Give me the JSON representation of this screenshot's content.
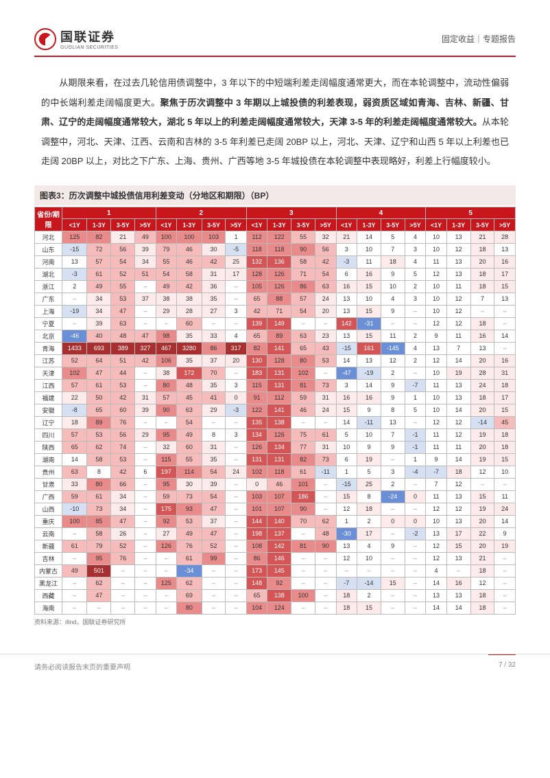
{
  "header": {
    "logo_cn": "国联证券",
    "logo_en": "GUOLIAN SECURITIES",
    "right": "固定收益｜专题报告"
  },
  "body": {
    "p1": "　　从期限来看，在过去几轮信用债调整中，3 年以下的中短端利差走阔幅度通常更大，而在本轮调整中，流动性偏弱的中长端利差走阔幅度更大。",
    "p1b": "聚焦于历次调整中 3 年期以上城投债的利差表现，弱资质区域如青海、吉林、新疆、甘肃、辽宁的走阔幅度通常较大，湖北 5 年以上的利差走阔幅度通常较大，天津 3-5 年的利差走阔幅度通常较大。",
    "p1c": "从本轮调整中，河北、天津、江西、云南和吉林的 3-5 年利差已走阔 20BP 以上，河北、天津、辽宁和山西 5 年以上利差也已走阔 20BP 以上，对比之下广东、上海、贵州、广西等地 3-5 年城投债在本轮调整中表现略好，利差上行幅度较小。"
  },
  "caption": "图表3：历次调整中城投债信用利差变动（分地区和期限）（BP）",
  "source": "资料来源：ifind，国联证券研究所",
  "footer_left": "请务必阅读报告末页的重要声明",
  "footer_right": "7 / 32",
  "table": {
    "corner": "省份/期限",
    "groups": [
      "1",
      "2",
      "3",
      "4",
      "5"
    ],
    "subcols": [
      "<1Y",
      "1-3Y",
      "3-5Y",
      ">5Y"
    ],
    "rows": [
      {
        "n": "河北",
        "v": [
          "125",
          "82",
          "21",
          "49",
          "100",
          "100",
          "103",
          "1",
          "112",
          "122",
          "55",
          "32",
          "21",
          "14",
          "5",
          "4",
          "10",
          "13",
          "21",
          "28"
        ]
      },
      {
        "n": "山东",
        "v": [
          "-15",
          "72",
          "56",
          "39",
          "79",
          "46",
          "30",
          "-5",
          "118",
          "118",
          "90",
          "56",
          "3",
          "10",
          "7",
          "3",
          "10",
          "12",
          "18",
          "13"
        ]
      },
      {
        "n": "河南",
        "v": [
          "13",
          "57",
          "54",
          "34",
          "55",
          "46",
          "42",
          "25",
          "132",
          "136",
          "58",
          "42",
          "-3",
          "11",
          "18",
          "4",
          "11",
          "13",
          "20",
          "16"
        ]
      },
      {
        "n": "湖北",
        "v": [
          "-3",
          "61",
          "52",
          "51",
          "54",
          "58",
          "31",
          "17",
          "128",
          "126",
          "71",
          "54",
          "6",
          "16",
          "9",
          "5",
          "12",
          "13",
          "18",
          "17"
        ]
      },
      {
        "n": "浙江",
        "v": [
          "2",
          "49",
          "55",
          "–",
          "49",
          "42",
          "36",
          "–",
          "105",
          "126",
          "86",
          "63",
          "16",
          "15",
          "10",
          "2",
          "10",
          "11",
          "18",
          "15"
        ]
      },
      {
        "n": "广东",
        "v": [
          "–",
          "34",
          "53",
          "37",
          "38",
          "38",
          "35",
          "–",
          "65",
          "88",
          "57",
          "24",
          "13",
          "10",
          "4",
          "3",
          "10",
          "12",
          "7",
          "13"
        ]
      },
      {
        "n": "上海",
        "v": [
          "-19",
          "34",
          "47",
          "–",
          "29",
          "28",
          "27",
          "3",
          "42",
          "71",
          "54",
          "20",
          "13",
          "15",
          "9",
          "–",
          "10",
          "12",
          "–",
          "–"
        ]
      },
      {
        "n": "宁夏",
        "v": [
          "–",
          "39",
          "63",
          "–",
          "–",
          "60",
          "–",
          "–",
          "139",
          "149",
          "–",
          "–",
          "142",
          "-31",
          "–",
          "–",
          "12",
          "12",
          "18",
          "–"
        ]
      },
      {
        "n": "北京",
        "v": [
          "-46",
          "40",
          "48",
          "47",
          "98",
          "35",
          "33",
          "4",
          "65",
          "89",
          "63",
          "23",
          "13",
          "15",
          "11",
          "2",
          "9",
          "11",
          "16",
          "14"
        ]
      },
      {
        "n": "青海",
        "v": [
          "1433",
          "693",
          "389",
          "327",
          "467",
          "3280",
          "86",
          "317",
          "82",
          "141",
          "65",
          "43",
          "-15",
          "161",
          "-145",
          "4",
          "13",
          "7",
          "13",
          "–"
        ]
      },
      {
        "n": "江苏",
        "v": [
          "52",
          "64",
          "51",
          "42",
          "106",
          "35",
          "37",
          "20",
          "130",
          "128",
          "80",
          "53",
          "14",
          "13",
          "12",
          "2",
          "12",
          "14",
          "20",
          "16"
        ]
      },
      {
        "n": "天津",
        "v": [
          "102",
          "47",
          "44",
          "–",
          "38",
          "172",
          "70",
          "–",
          "183",
          "131",
          "102",
          "–",
          "-47",
          "-19",
          "2",
          "–",
          "10",
          "19",
          "28",
          "31"
        ]
      },
      {
        "n": "江西",
        "v": [
          "57",
          "61",
          "53",
          "–",
          "80",
          "48",
          "35",
          "3",
          "115",
          "131",
          "81",
          "73",
          "3",
          "14",
          "9",
          "-7",
          "11",
          "13",
          "24",
          "18"
        ]
      },
      {
        "n": "福建",
        "v": [
          "22",
          "50",
          "42",
          "31",
          "57",
          "45",
          "41",
          "0",
          "91",
          "112",
          "59",
          "31",
          "16",
          "16",
          "9",
          "1",
          "10",
          "13",
          "18",
          "17"
        ]
      },
      {
        "n": "安徽",
        "v": [
          "-8",
          "65",
          "60",
          "39",
          "90",
          "63",
          "29",
          "-3",
          "122",
          "141",
          "46",
          "24",
          "15",
          "9",
          "8",
          "5",
          "10",
          "14",
          "20",
          "15"
        ]
      },
      {
        "n": "辽宁",
        "v": [
          "18",
          "89",
          "76",
          "–",
          "–",
          "54",
          "–",
          "–",
          "135",
          "138",
          "–",
          "–",
          "14",
          "-11",
          "13",
          "–",
          "12",
          "12",
          "-14",
          "45"
        ]
      },
      {
        "n": "四川",
        "v": [
          "57",
          "53",
          "56",
          "29",
          "95",
          "49",
          "8",
          "3",
          "134",
          "126",
          "75",
          "61",
          "5",
          "10",
          "7",
          "-1",
          "11",
          "12",
          "19",
          "18"
        ]
      },
      {
        "n": "陕西",
        "v": [
          "65",
          "62",
          "74",
          "–",
          "32",
          "60",
          "31",
          "–",
          "126",
          "134",
          "77",
          "31",
          "10",
          "9",
          "9",
          "-1",
          "11",
          "11",
          "20",
          "18"
        ]
      },
      {
        "n": "湖南",
        "v": [
          "14",
          "58",
          "53",
          "–",
          "115",
          "55",
          "35",
          "–",
          "131",
          "131",
          "82",
          "73",
          "6",
          "19",
          "–",
          "1",
          "9",
          "14",
          "19",
          "15"
        ]
      },
      {
        "n": "贵州",
        "v": [
          "63",
          "8",
          "42",
          "6",
          "197",
          "114",
          "54",
          "24",
          "102",
          "118",
          "61",
          "-11",
          "1",
          "5",
          "3",
          "-4",
          "-7",
          "18",
          "12",
          "10"
        ]
      },
      {
        "n": "甘肃",
        "v": [
          "33",
          "80",
          "66",
          "–",
          "95",
          "30",
          "39",
          "–",
          "0",
          "46",
          "101",
          "–",
          "-15",
          "25",
          "2",
          "–",
          "7",
          "12",
          "–",
          "–"
        ]
      },
      {
        "n": "广西",
        "v": [
          "59",
          "61",
          "34",
          "–",
          "59",
          "73",
          "54",
          "–",
          "103",
          "107",
          "186",
          "–",
          "15",
          "8",
          "-24",
          "0",
          "11",
          "13",
          "15",
          "11"
        ]
      },
      {
        "n": "山西",
        "v": [
          "-10",
          "73",
          "34",
          "–",
          "175",
          "93",
          "47",
          "–",
          "101",
          "107",
          "90",
          "–",
          "12",
          "18",
          "–",
          "–",
          "12",
          "12",
          "19",
          "24"
        ]
      },
      {
        "n": "重庆",
        "v": [
          "100",
          "85",
          "47",
          "–",
          "92",
          "53",
          "37",
          "–",
          "144",
          "140",
          "70",
          "62",
          "1",
          "2",
          "0",
          "0",
          "10",
          "13",
          "20",
          "14"
        ]
      },
      {
        "n": "云南",
        "v": [
          "–",
          "58",
          "26",
          "–",
          "27",
          "49",
          "47",
          "–",
          "198",
          "137",
          "–",
          "48",
          "-30",
          "17",
          "–",
          "-2",
          "13",
          "17",
          "22",
          "9"
        ]
      },
      {
        "n": "新疆",
        "v": [
          "61",
          "79",
          "52",
          "–",
          "126",
          "76",
          "52",
          "–",
          "108",
          "142",
          "81",
          "90",
          "13",
          "4",
          "9",
          "–",
          "12",
          "15",
          "20",
          "19"
        ]
      },
      {
        "n": "吉林",
        "v": [
          "–",
          "95",
          "76",
          "–",
          "–",
          "61",
          "99",
          "–",
          "86",
          "146",
          "–",
          "–",
          "12",
          "10",
          "–",
          "–",
          "12",
          "13",
          "21",
          "–"
        ]
      },
      {
        "n": "内蒙古",
        "v": [
          "49",
          "501",
          "–",
          "–",
          "–",
          "-34",
          "–",
          "–",
          "173",
          "145",
          "–",
          "–",
          "–",
          "–",
          "–",
          "–",
          "4",
          "–",
          "18",
          "–"
        ]
      },
      {
        "n": "黑龙江",
        "v": [
          "–",
          "62",
          "–",
          "–",
          "125",
          "62",
          "–",
          "–",
          "148",
          "92",
          "–",
          "–",
          "-7",
          "-14",
          "15",
          "–",
          "14",
          "16",
          "12",
          "–"
        ]
      },
      {
        "n": "西藏",
        "v": [
          "–",
          "47",
          "–",
          "–",
          "–",
          "69",
          "–",
          "–",
          "65",
          "138",
          "100",
          "–",
          "18",
          "2",
          "–",
          "–",
          "13",
          "13",
          "18",
          "–"
        ]
      },
      {
        "n": "海南",
        "v": [
          "–",
          "–",
          "–",
          "–",
          "–",
          "80",
          "–",
          "–",
          "104",
          "124",
          "–",
          "–",
          "18",
          "15",
          "–",
          "–",
          "14",
          "14",
          "18",
          "–"
        ]
      }
    ]
  },
  "heat": {
    "neg_hi": "#6b8fd6",
    "neg_lo": "#d5e0f2",
    "pos_lo": "#fdeaea",
    "pos_md": "#f6bcbc",
    "pos_hi": "#e98b8b",
    "pos_vh": "#d35555",
    "pos_xh": "#a82f2f",
    "zero": "#ffffff",
    "dash": "#ffffff"
  }
}
